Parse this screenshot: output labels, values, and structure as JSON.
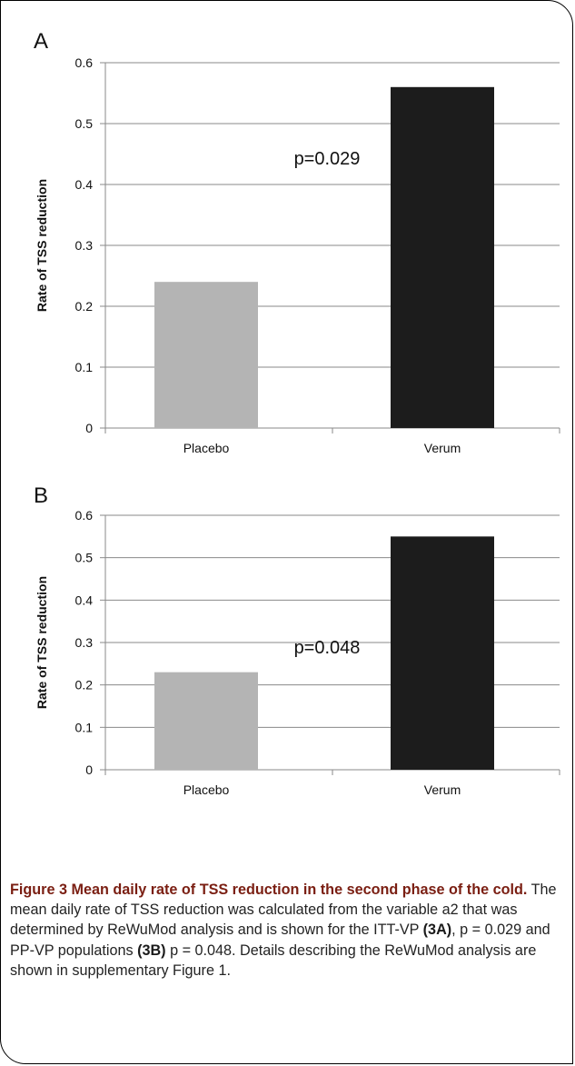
{
  "chart_data": [
    {
      "panel": "A",
      "type": "bar",
      "categories": [
        "Placebo",
        "Verum"
      ],
      "values": [
        0.24,
        0.56
      ],
      "colors": [
        "#b4b4b4",
        "#1c1c1c"
      ],
      "ylabel": "Rate of TSS reduction",
      "ylim": [
        0,
        0.6
      ],
      "yticks": [
        "0",
        "0.1",
        "0.2",
        "0.3",
        "0.4",
        "0.5",
        "0.6"
      ],
      "annotation": "p=0.029",
      "grid": true
    },
    {
      "panel": "B",
      "type": "bar",
      "categories": [
        "Placebo",
        "Verum"
      ],
      "values": [
        0.23,
        0.55
      ],
      "colors": [
        "#b4b4b4",
        "#1c1c1c"
      ],
      "ylabel": "Rate of TSS reduction",
      "ylim": [
        0,
        0.6
      ],
      "yticks": [
        "0",
        "0.1",
        "0.2",
        "0.3",
        "0.4",
        "0.5",
        "0.6"
      ],
      "annotation": "p=0.048",
      "grid": true
    }
  ],
  "caption": {
    "title": "Figure 3 Mean daily rate of TSS reduction in the second phase of the cold.",
    "body_1": " The mean daily rate of TSS reduction was calculated from the variable a2 that was determined by ReWuMod analysis and is shown for the ITT-VP ",
    "ref_a": "(3A)",
    "body_2": ", p = 0.029 and PP-VP populations ",
    "ref_b": "(3B)",
    "body_3": " p = 0.048. Details describing the ReWuMod analysis are shown in supplementary Figure 1."
  }
}
